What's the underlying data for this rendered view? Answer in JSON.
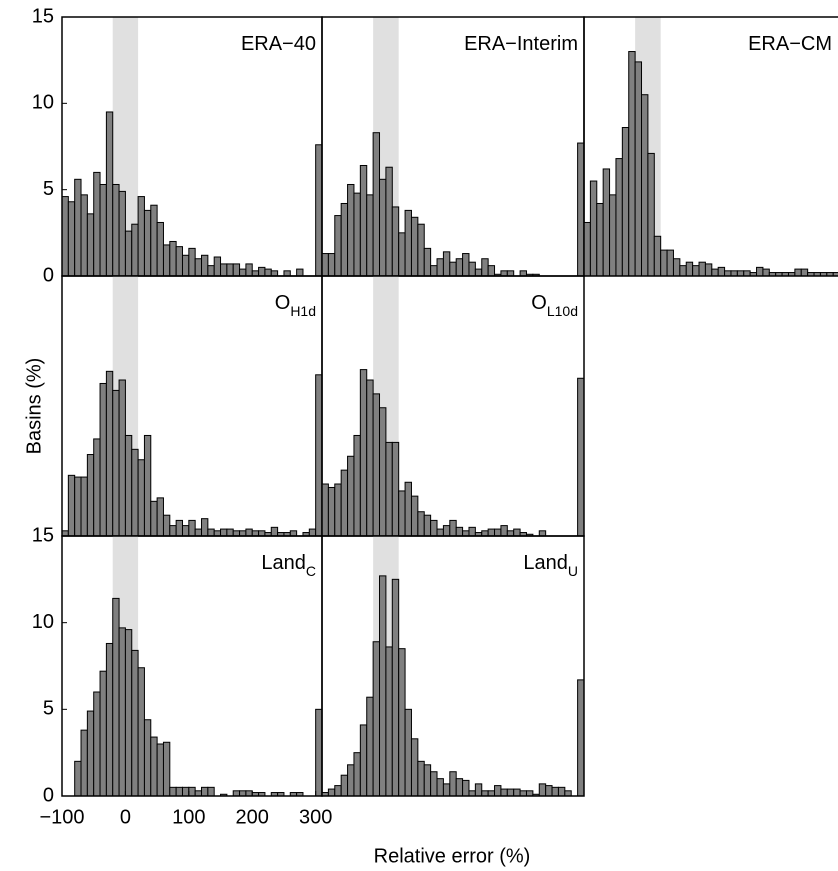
{
  "axis_labels": {
    "x": "Relative error (%)",
    "y": "Basins (%)"
  },
  "chart_data": [
    {
      "type": "histogram",
      "title": "ERA−40",
      "color": "#808080",
      "highlight": [
        -20,
        20
      ],
      "bins": [
        -100,
        -90,
        -80,
        -70,
        -60,
        -50,
        -40,
        -30,
        -20,
        -10,
        0,
        10,
        20,
        30,
        40,
        50,
        60,
        70,
        80,
        90,
        100,
        110,
        120,
        130,
        140,
        150,
        160,
        170,
        180,
        190,
        200,
        210,
        220,
        230,
        240,
        250,
        260,
        270,
        280,
        290,
        300,
        310
      ],
      "values": [
        4.6,
        4.3,
        5.6,
        4.7,
        3.6,
        6.0,
        5.3,
        9.5,
        5.3,
        4.9,
        2.6,
        3.0,
        4.6,
        3.8,
        4.1,
        3.1,
        1.8,
        2.0,
        1.7,
        1.2,
        1.6,
        1.0,
        1.2,
        0.6,
        1.1,
        0.7,
        0.7,
        0.7,
        0.4,
        0.7,
        0.3,
        0.5,
        0.4,
        0.3,
        0,
        0.3,
        0,
        0.4,
        0,
        0,
        7.6
      ],
      "xlim": [
        -100,
        310
      ],
      "ylim": [
        0,
        15
      ],
      "yticks": [
        0,
        5,
        10,
        15
      ]
    },
    {
      "type": "histogram",
      "title": "ERA−Interim",
      "color": "#808080",
      "highlight": [
        -20,
        20
      ],
      "bins": [
        -100,
        -90,
        -80,
        -70,
        -60,
        -50,
        -40,
        -30,
        -20,
        -10,
        0,
        10,
        20,
        30,
        40,
        50,
        60,
        70,
        80,
        90,
        100,
        110,
        120,
        130,
        140,
        150,
        160,
        170,
        180,
        190,
        200,
        210,
        220,
        230,
        240,
        250,
        260,
        270,
        280,
        290,
        300,
        310
      ],
      "values": [
        1.3,
        1.3,
        3.5,
        4.2,
        5.3,
        4.8,
        6.4,
        4.7,
        8.3,
        5.6,
        6.3,
        4.0,
        2.5,
        3.8,
        3.4,
        3.0,
        1.6,
        0.6,
        1.0,
        1.4,
        0.8,
        1.0,
        1.3,
        0.8,
        0.4,
        1.0,
        0.6,
        0.1,
        0.3,
        0.3,
        0,
        0.3,
        0.1,
        0.1,
        0,
        0,
        0,
        0,
        0,
        0,
        7.7
      ],
      "xlim": [
        -100,
        310
      ],
      "ylim": [
        0,
        15
      ]
    },
    {
      "type": "histogram",
      "title": "ERA−CM",
      "color": "#808080",
      "highlight": [
        -20,
        20
      ],
      "bins": [
        -100,
        -90,
        -80,
        -70,
        -60,
        -50,
        -40,
        -30,
        -20,
        -10,
        0,
        10,
        20,
        30,
        40,
        50,
        60,
        70,
        80,
        90,
        100,
        110,
        120,
        130,
        140,
        150,
        160,
        170,
        180,
        190,
        200,
        210,
        220,
        230,
        240,
        250,
        260,
        270,
        280,
        290,
        300,
        310
      ],
      "values": [
        3.1,
        5.5,
        4.2,
        6.2,
        4.7,
        6.8,
        8.6,
        13.0,
        12.4,
        10.5,
        7.1,
        2.3,
        1.5,
        1.5,
        1.0,
        0.6,
        0.8,
        0.6,
        0.8,
        0.7,
        0.4,
        0.5,
        0.3,
        0.3,
        0.3,
        0.3,
        0.2,
        0.5,
        0.4,
        0.2,
        0.2,
        0.2,
        0.2,
        0.4,
        0.4,
        0.2,
        0.2,
        0.2,
        0.2,
        0.2,
        0.2
      ],
      "xlim": [
        -100,
        310
      ],
      "ylim": [
        0,
        15
      ]
    },
    {
      "type": "histogram",
      "title": "O",
      "title_sub": "H1d",
      "color": "#808080",
      "highlight": [
        -20,
        20
      ],
      "bins": [
        -100,
        -90,
        -80,
        -70,
        -60,
        -50,
        -40,
        -30,
        -20,
        -10,
        0,
        10,
        20,
        30,
        40,
        50,
        60,
        70,
        80,
        90,
        100,
        110,
        120,
        130,
        140,
        150,
        160,
        170,
        180,
        190,
        200,
        210,
        220,
        230,
        240,
        250,
        260,
        270,
        280,
        290,
        300,
        310
      ],
      "values": [
        0.3,
        3.5,
        3.4,
        3.4,
        4.7,
        5.6,
        8.8,
        9.5,
        8.4,
        9.0,
        5.8,
        5.0,
        4.4,
        5.8,
        2.0,
        2.2,
        1.2,
        0.6,
        0.9,
        0.6,
        0.9,
        0.4,
        1.0,
        0.4,
        0.3,
        0.4,
        0.4,
        0.3,
        0.3,
        0.4,
        0.3,
        0.3,
        0.2,
        0.5,
        0.2,
        0.2,
        0.3,
        0,
        0.2,
        0.4,
        9.3
      ],
      "xlim": [
        -100,
        310
      ],
      "ylim": [
        0,
        15
      ]
    },
    {
      "type": "histogram",
      "title": "O",
      "title_sub": "L10d",
      "color": "#808080",
      "highlight": [
        -20,
        20
      ],
      "bins": [
        -100,
        -90,
        -80,
        -70,
        -60,
        -50,
        -40,
        -30,
        -20,
        -10,
        0,
        10,
        20,
        30,
        40,
        50,
        60,
        70,
        80,
        90,
        100,
        110,
        120,
        130,
        140,
        150,
        160,
        170,
        180,
        190,
        200,
        210,
        220,
        230,
        240,
        250,
        260,
        270,
        280,
        290,
        300,
        310
      ],
      "values": [
        3.0,
        2.8,
        3.0,
        3.8,
        4.6,
        5.8,
        9.6,
        9.0,
        8.2,
        7.4,
        5.4,
        5.4,
        2.6,
        3.1,
        2.3,
        1.4,
        1.2,
        0.9,
        0.4,
        0.6,
        0.9,
        0.5,
        0.3,
        0.5,
        0.2,
        0.3,
        0.4,
        0.4,
        0.6,
        0.3,
        0.4,
        0.2,
        0.1,
        0,
        0.3,
        0,
        0,
        0,
        0,
        0,
        9.1
      ],
      "xlim": [
        -100,
        310
      ],
      "ylim": [
        0,
        15
      ]
    },
    {
      "type": "histogram",
      "title": "Land",
      "title_sub": "C",
      "color": "#808080",
      "highlight": [
        -20,
        20
      ],
      "bins": [
        -100,
        -90,
        -80,
        -70,
        -60,
        -50,
        -40,
        -30,
        -20,
        -10,
        0,
        10,
        20,
        30,
        40,
        50,
        60,
        70,
        80,
        90,
        100,
        110,
        120,
        130,
        140,
        150,
        160,
        170,
        180,
        190,
        200,
        210,
        220,
        230,
        240,
        250,
        260,
        270,
        280,
        290,
        300,
        310
      ],
      "values": [
        0,
        0,
        2.0,
        3.8,
        4.9,
        6.0,
        7.2,
        8.8,
        11.4,
        9.7,
        9.6,
        8.4,
        7.4,
        4.4,
        3.4,
        3.0,
        3.1,
        0.5,
        0.5,
        0.5,
        0.5,
        0.3,
        0.5,
        0.5,
        0,
        0.1,
        0,
        0.3,
        0.3,
        0.3,
        0.2,
        0.2,
        0,
        0.2,
        0.2,
        0,
        0.2,
        0.2,
        0,
        0,
        5.0
      ],
      "xlim": [
        -100,
        310
      ],
      "ylim": [
        0,
        15
      ],
      "yticks": [
        0,
        5,
        10,
        15
      ],
      "xticks": [
        {
          "value": -100,
          "label": "−100"
        },
        0,
        100,
        200,
        300
      ]
    },
    {
      "type": "histogram",
      "title": "Land",
      "title_sub": "U",
      "color": "#808080",
      "highlight": [
        -20,
        20
      ],
      "bins": [
        -100,
        -90,
        -80,
        -70,
        -60,
        -50,
        -40,
        -30,
        -20,
        -10,
        0,
        10,
        20,
        30,
        40,
        50,
        60,
        70,
        80,
        90,
        100,
        110,
        120,
        130,
        140,
        150,
        160,
        170,
        180,
        190,
        200,
        210,
        220,
        230,
        240,
        250,
        260,
        270,
        280,
        290,
        300,
        310
      ],
      "values": [
        0.2,
        0.4,
        0.6,
        1.2,
        1.8,
        2.5,
        4.1,
        5.7,
        8.9,
        12.7,
        8.6,
        12.5,
        8.5,
        5.0,
        3.3,
        2.0,
        1.8,
        1.4,
        1.0,
        0.7,
        1.4,
        1.0,
        0.9,
        0.3,
        0.7,
        0.3,
        0.3,
        0.6,
        0.4,
        0.4,
        0.4,
        0.3,
        0.3,
        0.1,
        0.7,
        0.6,
        0.5,
        0.5,
        0.3,
        0,
        6.7
      ],
      "xlim": [
        -100,
        310
      ],
      "ylim": [
        0,
        15
      ]
    }
  ]
}
